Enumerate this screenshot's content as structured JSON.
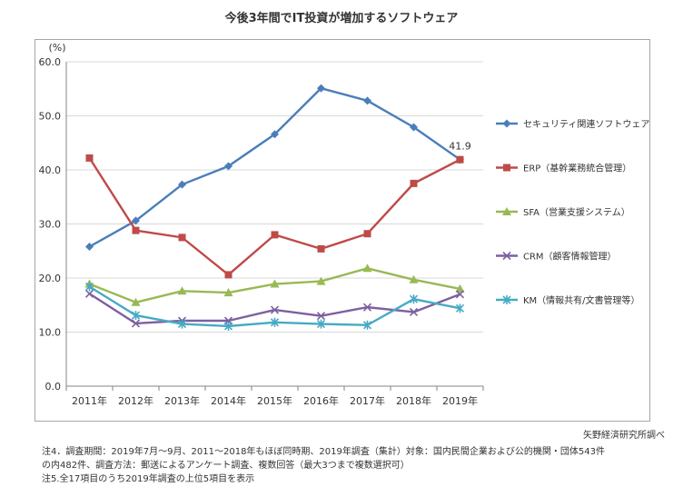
{
  "chart_data": {
    "type": "line",
    "title": "今後3年間でIT投資が増加するソフトウェア",
    "ylabel": "(%)",
    "xlabel": "",
    "ylim": [
      0,
      60
    ],
    "yticks": [
      "0.0",
      "10.0",
      "20.0",
      "30.0",
      "40.0",
      "50.0",
      "60.0"
    ],
    "categories": [
      "2011年",
      "2012年",
      "2013年",
      "2014年",
      "2015年",
      "2016年",
      "2017年",
      "2018年",
      "2019年"
    ],
    "grid": true,
    "legend_position": "right",
    "series": [
      {
        "name": "セキュリティ関連ソフトウェア",
        "color": "#4a7ebb",
        "marker": "diamond",
        "values": [
          25.8,
          30.6,
          37.3,
          40.7,
          46.6,
          55.1,
          52.8,
          47.9,
          41.9
        ]
      },
      {
        "name": "ERP（基幹業務統合管理）",
        "color": "#be4b48",
        "marker": "square",
        "values": [
          42.2,
          28.8,
          27.5,
          20.6,
          28.0,
          25.4,
          28.2,
          37.5,
          41.9
        ]
      },
      {
        "name": "SFA（営業支援システム）",
        "color": "#98b954",
        "marker": "triangle",
        "values": [
          18.9,
          15.5,
          17.6,
          17.3,
          18.9,
          19.4,
          21.8,
          19.7,
          18.0
        ]
      },
      {
        "name": "CRM（顧客情報管理）",
        "color": "#7d60a0",
        "marker": "x",
        "values": [
          17.1,
          11.6,
          12.1,
          12.1,
          14.1,
          13.0,
          14.6,
          13.7,
          17.0
        ]
      },
      {
        "name": "KM（情報共有/文書管理等）",
        "color": "#46aac5",
        "marker": "star",
        "values": [
          18.4,
          13.1,
          11.5,
          11.1,
          11.8,
          11.5,
          11.3,
          16.1,
          14.4
        ]
      }
    ],
    "annotations": [
      {
        "text": "41.9",
        "series": 0,
        "index": 8
      }
    ]
  },
  "source": "矢野経済研究所調べ",
  "notes": [
    "注4．調査期間：2019年7月～9月、2011～2018年もほぼ同時期、2019年調査（集計）対象：国内民間企業および公的機関・団体543件",
    "の内482件、調査方法：郵送によるアンケート調査、複数回答（最大3つまで複数選択可）",
    "注5.全17項目のうち2019年調査の上位5項目を表示"
  ]
}
